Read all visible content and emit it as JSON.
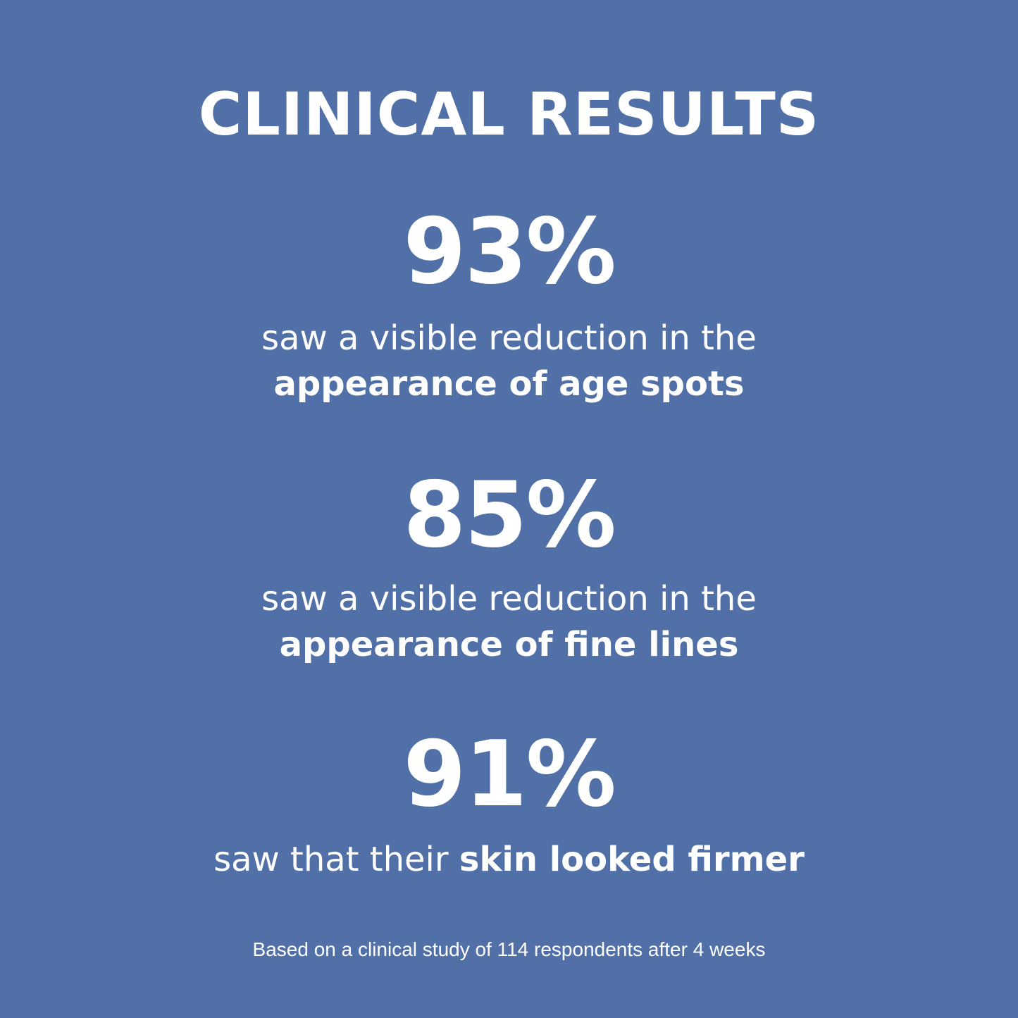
{
  "title": "CLINICAL RESULTS",
  "stats": [
    {
      "value": "93%",
      "line1": "saw a visible reduction in the",
      "line2_bold": "appearance of age spots"
    },
    {
      "value": "85%",
      "line1": "saw a visible reduction in the",
      "line2_bold": "appearance of fine lines"
    },
    {
      "value": "91%",
      "text": "saw that their ",
      "text_bold": "skin looked firmer"
    }
  ],
  "footnote": "Based on a clinical study of 114 respondents after 4 weeks",
  "colors": {
    "background": "#5170a7",
    "text": "#ffffff"
  }
}
